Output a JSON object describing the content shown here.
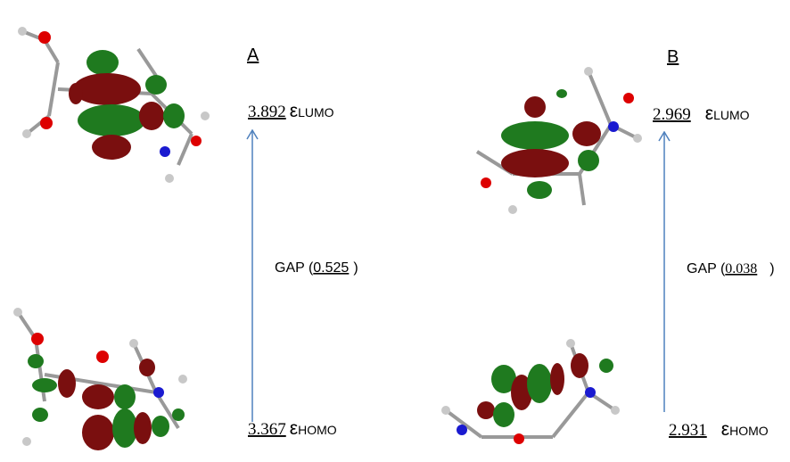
{
  "panels": [
    {
      "label": "A",
      "lumo": {
        "value": "3.892",
        "symbol": "ε",
        "orbital": "LUMO"
      },
      "gap": {
        "prefix": "GAP (",
        "value": "0.525",
        "suffix": ")"
      },
      "homo": {
        "value": "3.367",
        "symbol": "ε",
        "orbital": "HOMO"
      }
    },
    {
      "label": "B",
      "lumo": {
        "value": "2.969",
        "symbol": "ε",
        "orbital": "LUMO"
      },
      "gap": {
        "prefix": "GAP (",
        "value": "0.038",
        "suffix": ")"
      },
      "homo": {
        "value": "2.931",
        "symbol": "ε",
        "orbital": "HOMO"
      }
    }
  ]
}
